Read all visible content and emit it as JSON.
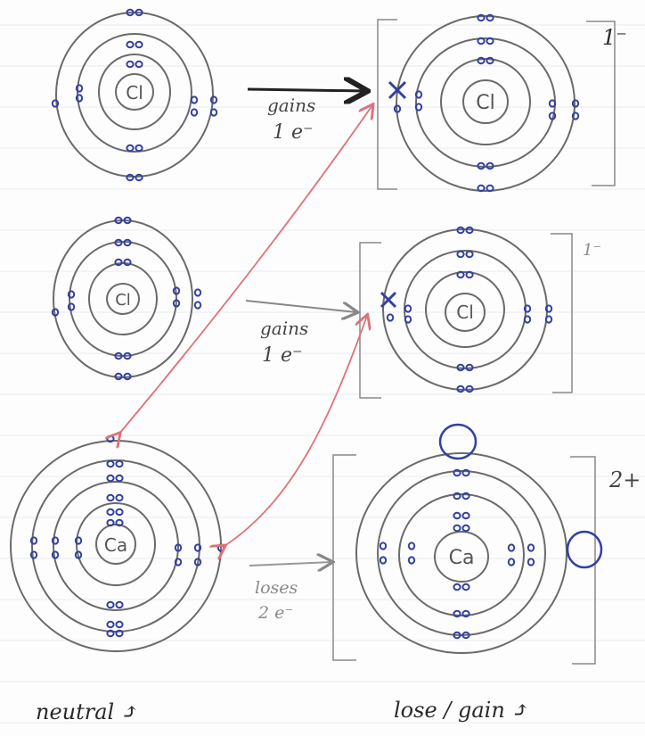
{
  "atoms": [
    {
      "id": "cl-neutral-1",
      "symbol": "Cl"
    },
    {
      "id": "cl-ion-1",
      "symbol": "Cl",
      "charge": "1⁻"
    },
    {
      "id": "cl-neutral-2",
      "symbol": "Cl"
    },
    {
      "id": "cl-ion-2",
      "symbol": "Cl",
      "charge": "1⁻"
    },
    {
      "id": "ca-neutral",
      "symbol": "Ca"
    },
    {
      "id": "ca-ion",
      "symbol": "Ca",
      "charge": "2+"
    }
  ],
  "arrows": [
    {
      "line1": "gains",
      "line2": "1 e⁻"
    },
    {
      "line1": "gains",
      "line2": "1 e⁻"
    },
    {
      "line1": "loses",
      "line2": "2 e⁻"
    }
  ],
  "footer": {
    "left": "neutral ⤴",
    "right": "lose / gain ⤴"
  },
  "colors": {
    "electron": "#3340a0",
    "shell": "#6a6a6a",
    "transfer": "#e0707a",
    "paper_line": "#e6eaf2"
  }
}
